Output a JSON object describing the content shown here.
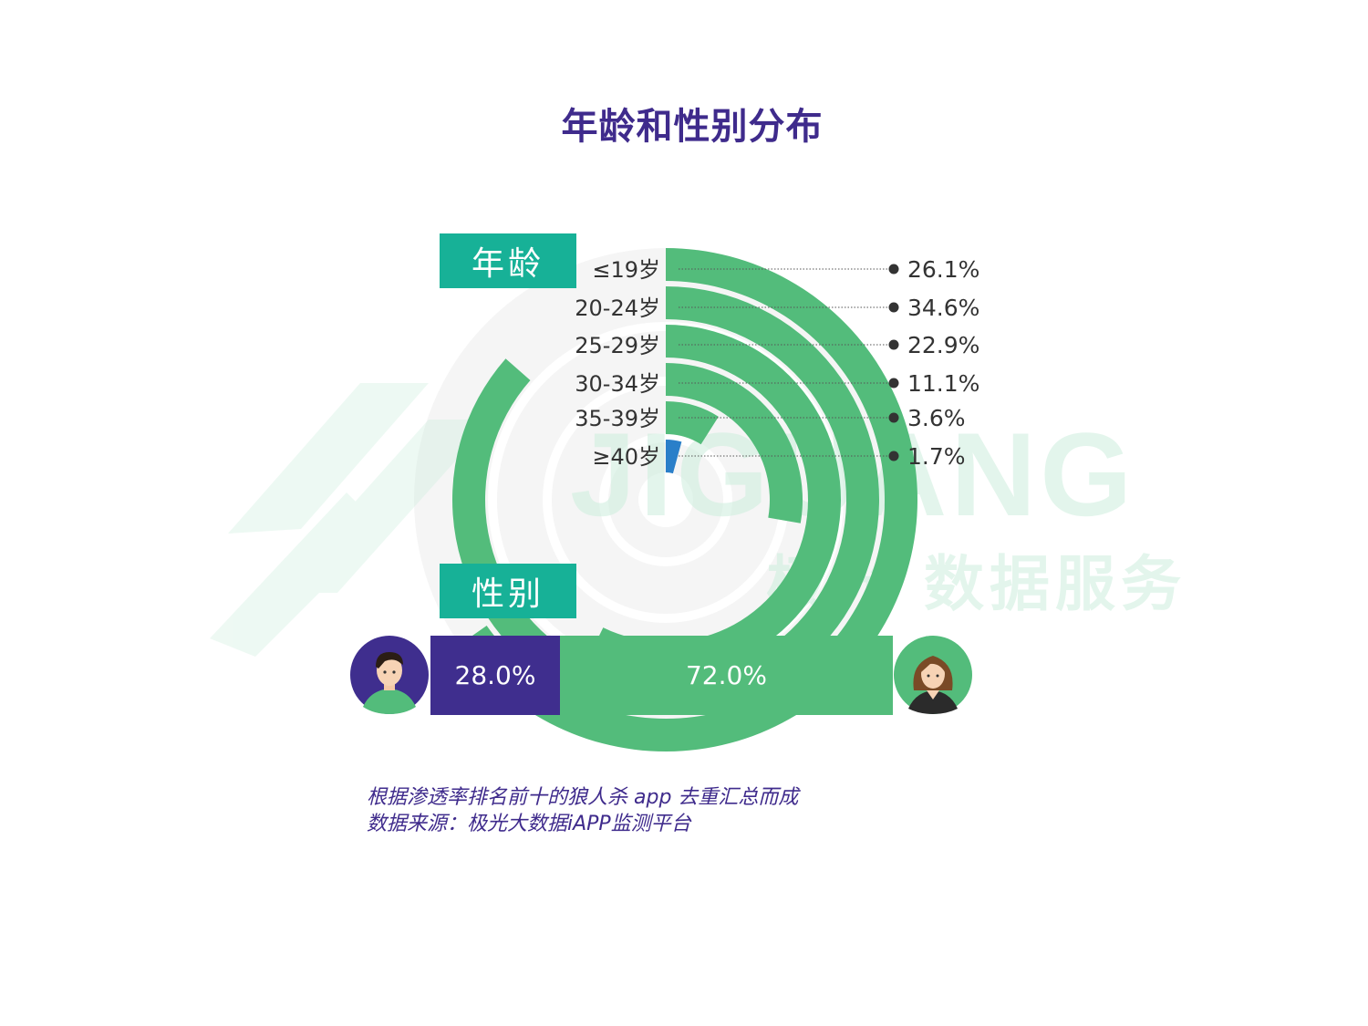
{
  "title": "年龄和性别分布",
  "watermark": {
    "brand": "JIGUANG",
    "subtitle": "极光 数据服务"
  },
  "sections": {
    "age_label": "年龄",
    "gender_label": "性别"
  },
  "colors": {
    "title": "#3f2b8c",
    "label_bg": "#17b197",
    "arc": "#53bc7b",
    "arc_last": "#2a7fc9",
    "male": "#3f2e8e",
    "female": "#53bc7b"
  },
  "chart_data": [
    {
      "type": "radial-bar",
      "categories": [
        "≤19岁",
        "20-24岁",
        "25-29岁",
        "30-34岁",
        "35-39岁",
        "≥40岁"
      ],
      "values": [
        26.1,
        34.6,
        22.9,
        11.1,
        3.6,
        1.7
      ],
      "value_labels": [
        "26.1%",
        "34.6%",
        "22.9%",
        "11.1%",
        "3.6%",
        "1.7%"
      ],
      "max": 40
    },
    {
      "type": "bar",
      "stacked": true,
      "categories": [
        "男",
        "女"
      ],
      "values": [
        28.0,
        72.0
      ],
      "value_labels": [
        "28.0%",
        "72.0%"
      ]
    }
  ],
  "gender_labels": {
    "male": "28.0%",
    "female": "72.0%"
  },
  "footnote": {
    "line1": "根据渗透率排名前十的狼人杀 app 去重汇总而成",
    "line2": "数据来源：极光大数据iAPP监测平台"
  }
}
